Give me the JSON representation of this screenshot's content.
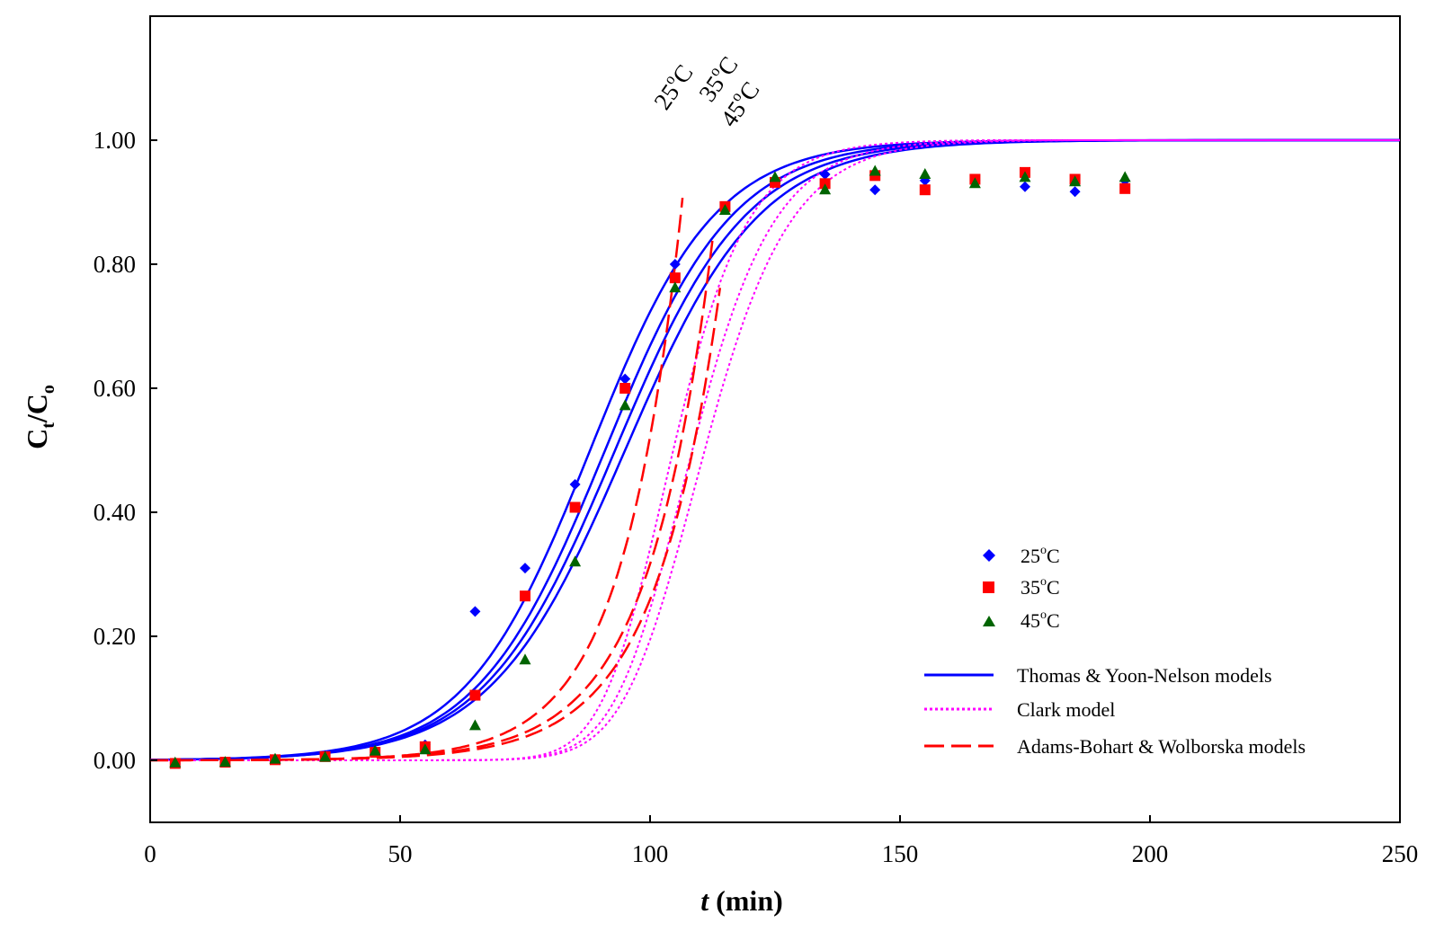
{
  "chart_data": {
    "type": "scatter",
    "title": "",
    "xlabel_italic": "t",
    "xlabel_unit": "(min)",
    "ylabel_main": "C",
    "ylabel_sub1": "t",
    "ylabel_slash": "/C",
    "ylabel_sub2": "o",
    "xlim": [
      0,
      250
    ],
    "ylim": [
      -0.1,
      1.2
    ],
    "xticks": [
      0,
      50,
      100,
      150,
      200,
      250
    ],
    "xtick_labels": [
      "0",
      "50",
      "100",
      "150",
      "200",
      "250"
    ],
    "yticks": [
      0,
      0.2,
      0.4,
      0.6,
      0.8,
      1.0
    ],
    "ytick_labels": [
      "0.00",
      "0.20",
      "0.40",
      "0.60",
      "0.80",
      "1.00"
    ],
    "grid": false,
    "legend_position": "center-right",
    "series": [
      {
        "name": "25°C",
        "label_num": "25",
        "marker": "diamond",
        "color": "#0000ff",
        "x": [
          5,
          15,
          25,
          35,
          45,
          55,
          65,
          75,
          85,
          95,
          105,
          115,
          125,
          135,
          145,
          155,
          165,
          175,
          185,
          195
        ],
        "y": [
          -0.005,
          -0.003,
          0.002,
          0.008,
          0.015,
          0.025,
          0.24,
          0.31,
          0.445,
          0.615,
          0.8,
          0.89,
          0.935,
          0.945,
          0.92,
          0.935,
          0.935,
          0.925,
          0.917,
          0.935
        ]
      },
      {
        "name": "35°C",
        "label_num": "35",
        "marker": "square",
        "color": "#ff0000",
        "x": [
          5,
          15,
          25,
          35,
          45,
          55,
          65,
          75,
          85,
          95,
          105,
          115,
          125,
          135,
          145,
          155,
          165,
          175,
          185,
          195
        ],
        "y": [
          -0.005,
          -0.003,
          0.001,
          0.006,
          0.013,
          0.022,
          0.105,
          0.265,
          0.408,
          0.6,
          0.778,
          0.893,
          0.932,
          0.93,
          0.943,
          0.92,
          0.937,
          0.948,
          0.937,
          0.922
        ]
      },
      {
        "name": "45°C",
        "label_num": "45",
        "marker": "triangle",
        "color": "#006400",
        "x": [
          5,
          15,
          25,
          35,
          45,
          55,
          65,
          75,
          85,
          95,
          105,
          115,
          125,
          135,
          145,
          155,
          165,
          175,
          185,
          195
        ],
        "y": [
          -0.004,
          -0.003,
          0.002,
          0.005,
          0.015,
          0.017,
          0.056,
          0.162,
          0.32,
          0.572,
          0.762,
          0.887,
          0.94,
          0.92,
          0.95,
          0.945,
          0.93,
          0.94,
          0.933,
          0.94
        ]
      }
    ],
    "models": [
      {
        "name": "Thomas & Yoon-Nelson models",
        "style": "solid",
        "color": "#0000ff",
        "curves": [
          {
            "k": 0.08,
            "t0": 88
          },
          {
            "k": 0.078,
            "t0": 91
          },
          {
            "k": 0.076,
            "t0": 93
          },
          {
            "k": 0.074,
            "t0": 95
          }
        ]
      },
      {
        "name": "Clark model",
        "style": "dotted",
        "color": "#ff00ff",
        "curves": [
          {
            "k": 0.115,
            "t0": 96,
            "n": 2.2
          },
          {
            "k": 0.105,
            "t0": 99,
            "n": 2.2
          },
          {
            "k": 0.1,
            "t0": 101,
            "n": 2.2
          }
        ]
      },
      {
        "name": "Adams-Bohart & Wolborska models",
        "style": "dashed",
        "color": "#ff0000",
        "curves": [
          {
            "k": 0.085,
            "b": 9.15,
            "x_end": 106.5
          },
          {
            "k": 0.078,
            "b": 8.95,
            "x_end": 112.5
          },
          {
            "k": 0.077,
            "b": 9.05,
            "x_end": 114
          }
        ]
      }
    ],
    "annotations": {
      "unit": "°C",
      "deg_symbol": "o",
      "deg_unit": "C",
      "labels": [
        "25°C",
        "35°C",
        "45°C"
      ]
    }
  }
}
